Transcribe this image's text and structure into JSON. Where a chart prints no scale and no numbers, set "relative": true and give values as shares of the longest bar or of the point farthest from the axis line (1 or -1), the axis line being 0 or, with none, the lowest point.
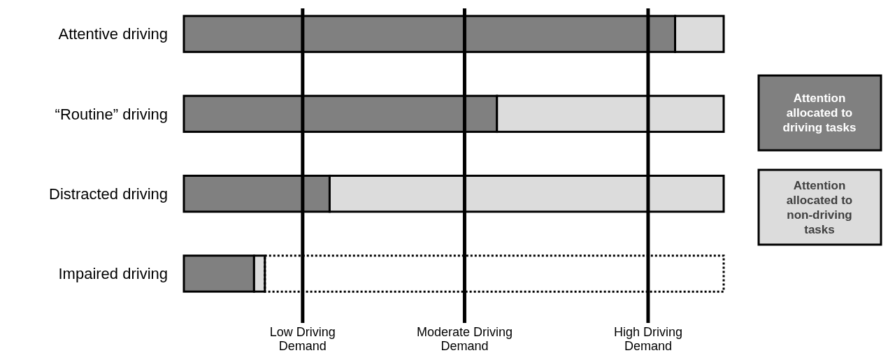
{
  "chart_data": {
    "type": "bar",
    "orientation": "horizontal",
    "stacked": true,
    "relative": true,
    "legend": "right",
    "categories": [
      "Attentive driving",
      "“Routine” driving",
      "Distracted driving",
      "Impaired driving"
    ],
    "series": [
      {
        "name": "Attention allocated to driving tasks",
        "color": "#808080",
        "values": [
          0.91,
          0.58,
          0.27,
          0.13
        ]
      },
      {
        "name": "Attention allocated to non-driving tasks",
        "color": "#dcdcdc",
        "values": [
          0.09,
          0.42,
          0.73,
          0.02
        ]
      },
      {
        "color": "#000000",
        "line_style": "dotted",
        "values": [
          null,
          null,
          null,
          0.85
        ]
      }
    ],
    "ref_lines": [
      {
        "axis": "x",
        "value": 0.22,
        "label": "Low Driving Demand",
        "color": "#000000"
      },
      {
        "axis": "x",
        "value": 0.52,
        "label": "Moderate Driving Demand",
        "color": "#000000"
      },
      {
        "axis": "x",
        "value": 0.86,
        "label": "High Driving Demand",
        "color": "#000000"
      }
    ]
  }
}
